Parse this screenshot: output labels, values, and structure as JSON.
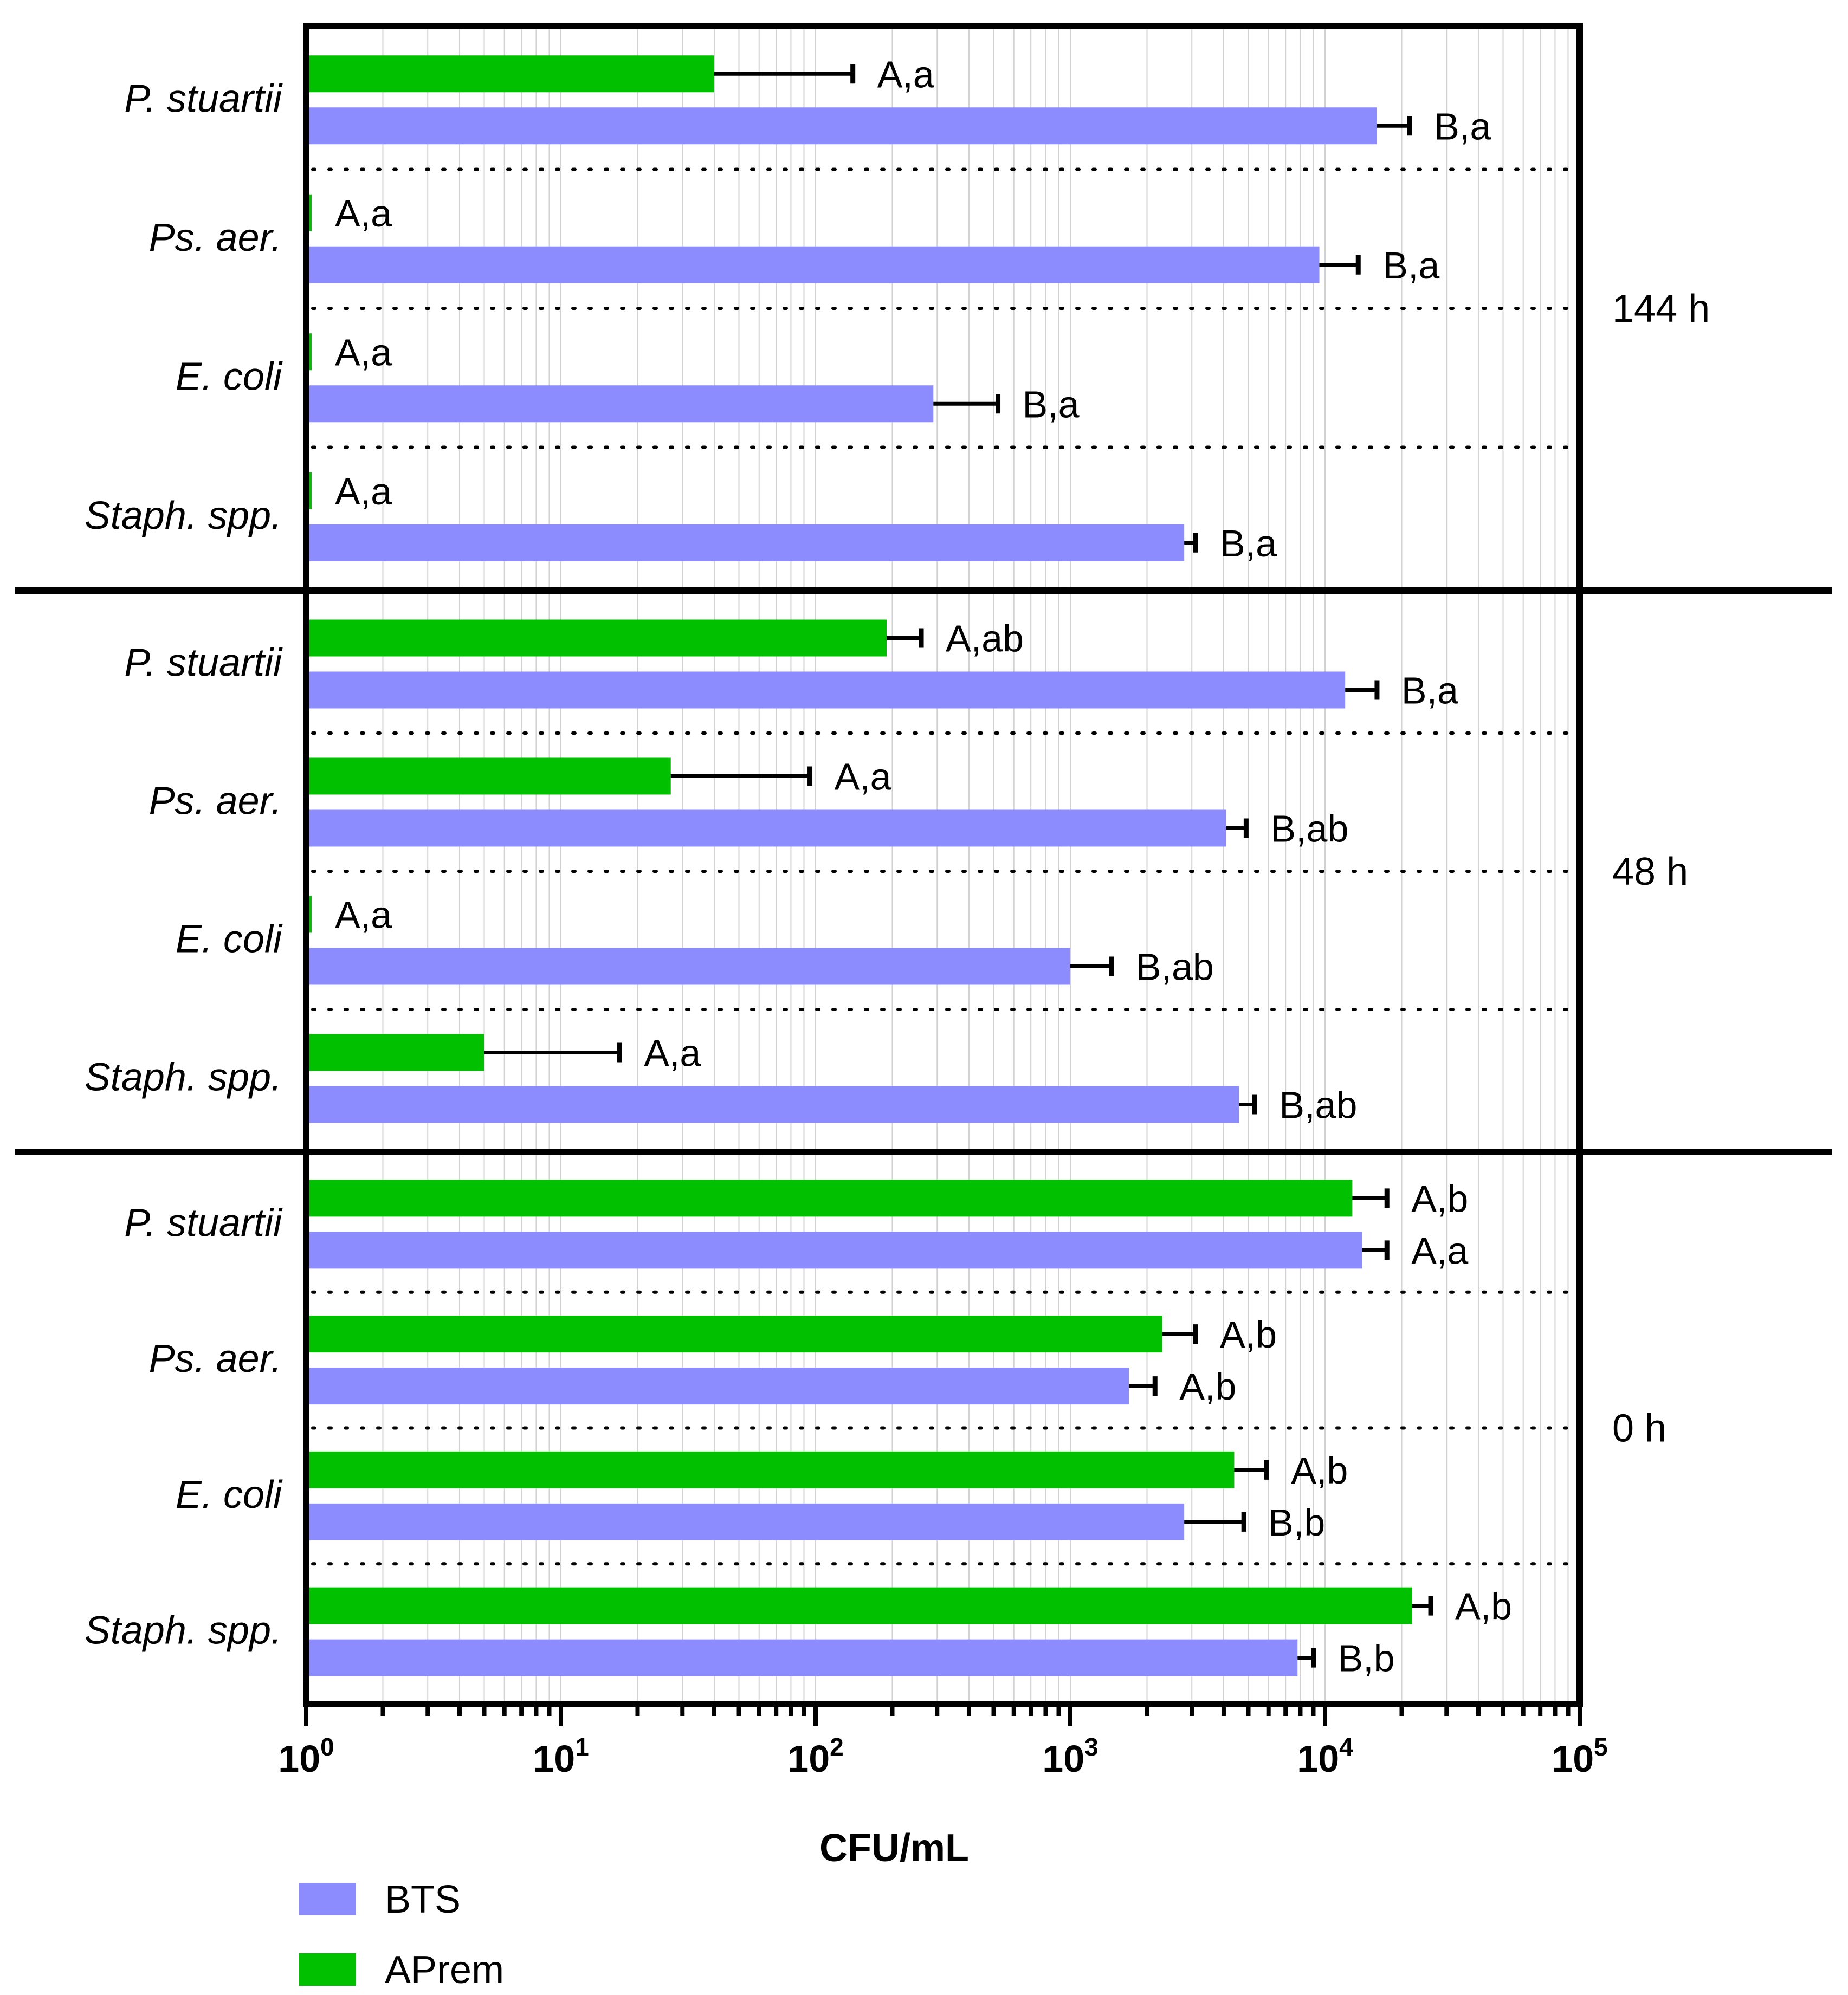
{
  "chart_data": {
    "type": "bar",
    "orientation": "horizontal",
    "x_scale": "log10",
    "xlim": [
      1,
      100000
    ],
    "xlabel": "CFU/mL",
    "x_ticks": [
      {
        "value": 1,
        "base": "10",
        "exp": "0"
      },
      {
        "value": 10,
        "base": "10",
        "exp": "1"
      },
      {
        "value": 100,
        "base": "10",
        "exp": "2"
      },
      {
        "value": 1000,
        "base": "10",
        "exp": "3"
      },
      {
        "value": 10000,
        "base": "10",
        "exp": "4"
      },
      {
        "value": 100000,
        "base": "10",
        "exp": "5"
      }
    ],
    "grid": "vertical minor gridlines",
    "legend": [
      {
        "name": "BTS",
        "color": "#8C8CFF"
      },
      {
        "name": "APrem",
        "color": "#00C000"
      }
    ],
    "panels": [
      {
        "time_label": "144 h",
        "groups": [
          {
            "name": "P. stuartii",
            "bars": [
              {
                "series": "APrem",
                "value": 40,
                "error": 140,
                "label": "A,a"
              },
              {
                "series": "BTS",
                "value": 16000,
                "error": 21500,
                "label": "B,a"
              }
            ]
          },
          {
            "name": "Ps. aer.",
            "bars": [
              {
                "series": "APrem",
                "value": 1.04,
                "error": 1.04,
                "label": "A,a"
              },
              {
                "series": "BTS",
                "value": 9500,
                "error": 13500,
                "label": "B,a"
              }
            ]
          },
          {
            "name": "E. coli",
            "bars": [
              {
                "series": "APrem",
                "value": 1.04,
                "error": 1.04,
                "label": "A,a"
              },
              {
                "series": "BTS",
                "value": 290,
                "error": 520,
                "label": "B,a"
              }
            ]
          },
          {
            "name": "Staph. spp.",
            "bars": [
              {
                "series": "APrem",
                "value": 1.04,
                "error": 1.04,
                "label": "A,a"
              },
              {
                "series": "BTS",
                "value": 2800,
                "error": 3100,
                "label": "B,a"
              }
            ]
          }
        ]
      },
      {
        "time_label": "48 h",
        "groups": [
          {
            "name": "P. stuartii",
            "bars": [
              {
                "series": "APrem",
                "value": 190,
                "error": 260,
                "label": "A,ab"
              },
              {
                "series": "BTS",
                "value": 12000,
                "error": 16000,
                "label": "B,a"
              }
            ]
          },
          {
            "name": "Ps. aer.",
            "bars": [
              {
                "series": "APrem",
                "value": 27,
                "error": 95,
                "label": "A,a"
              },
              {
                "series": "BTS",
                "value": 4100,
                "error": 4900,
                "label": "B,ab"
              }
            ]
          },
          {
            "name": "E. coli",
            "bars": [
              {
                "series": "APrem",
                "value": 1.04,
                "error": 1.04,
                "label": "A,a"
              },
              {
                "series": "BTS",
                "value": 1000,
                "error": 1450,
                "label": "B,ab"
              }
            ]
          },
          {
            "name": "Staph. spp.",
            "bars": [
              {
                "series": "APrem",
                "value": 5,
                "error": 17,
                "label": "A,a"
              },
              {
                "series": "BTS",
                "value": 4600,
                "error": 5300,
                "label": "B,ab"
              }
            ]
          }
        ]
      },
      {
        "time_label": "0 h",
        "groups": [
          {
            "name": "P. stuartii",
            "bars": [
              {
                "series": "APrem",
                "value": 12800,
                "error": 17500,
                "label": "A,b"
              },
              {
                "series": "BTS",
                "value": 14000,
                "error": 17500,
                "label": "A,a"
              }
            ]
          },
          {
            "name": "Ps. aer.",
            "bars": [
              {
                "series": "APrem",
                "value": 2300,
                "error": 3100,
                "label": "A,b"
              },
              {
                "series": "BTS",
                "value": 1700,
                "error": 2150,
                "label": "A,b"
              }
            ]
          },
          {
            "name": "E. coli",
            "bars": [
              {
                "series": "APrem",
                "value": 4400,
                "error": 5900,
                "label": "A,b"
              },
              {
                "series": "BTS",
                "value": 2800,
                "error": 4800,
                "label": "B,b"
              }
            ]
          },
          {
            "name": "Staph. spp.",
            "bars": [
              {
                "series": "APrem",
                "value": 22000,
                "error": 26000,
                "label": "A,b"
              },
              {
                "series": "BTS",
                "value": 7800,
                "error": 9000,
                "label": "B,b"
              }
            ]
          }
        ]
      }
    ]
  }
}
